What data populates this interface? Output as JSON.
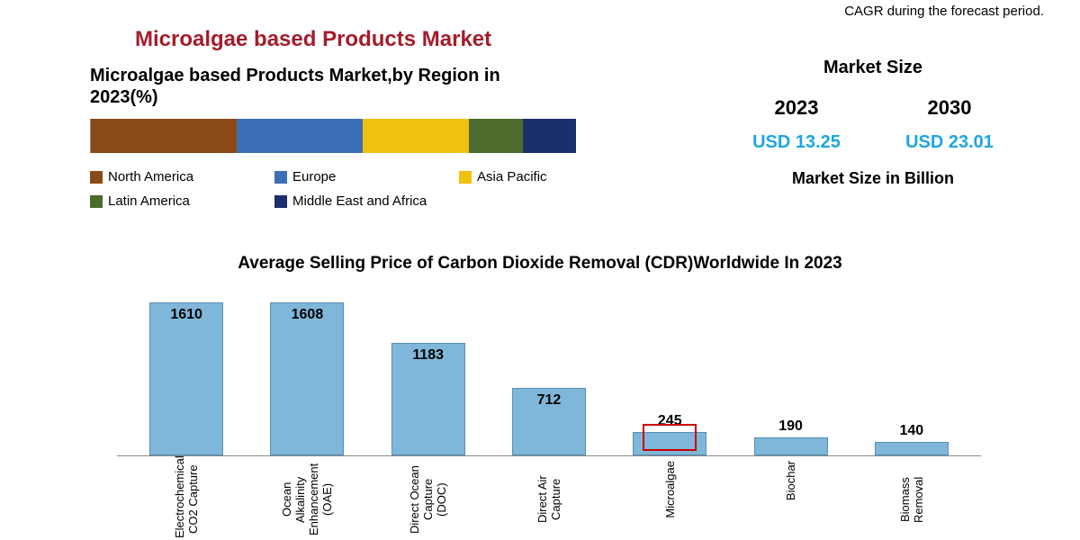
{
  "top_note": "CAGR during the forecast period.",
  "main_title": "Microalgae based Products Market",
  "main_title_color": "#a31d2c",
  "region_chart": {
    "title": "Microalgae based Products Market,by Region in 2023(%)",
    "type": "stacked-bar-horizontal",
    "segments": [
      {
        "label": "North America",
        "pct": 30,
        "color": "#8a4a15"
      },
      {
        "label": "Europe",
        "pct": 26,
        "color": "#3b6fb5"
      },
      {
        "label": "Asia Pacific",
        "pct": 22,
        "color": "#f2c10f"
      },
      {
        "label": "Latin America",
        "pct": 11,
        "color": "#4d6b2d"
      },
      {
        "label": "Middle East and Africa",
        "pct": 11,
        "color": "#1b2f6a"
      }
    ]
  },
  "market_size": {
    "title": "Market Size",
    "years": [
      "2023",
      "2030"
    ],
    "values": [
      "USD 13.25",
      "USD 23.01"
    ],
    "value_color": "#1ea6e0",
    "unit": "Market Size in Billion"
  },
  "cdr_chart": {
    "title": "Average Selling Price of Carbon Dioxide Removal (CDR)Worldwide In 2023",
    "type": "bar",
    "bar_color": "#7fb7da",
    "bar_border": "#5a8fb0",
    "max_value": 1700,
    "highlight_color": "#cc0000",
    "bars": [
      {
        "label": "Electrochemical CO2 Capture",
        "value": 1610,
        "highlight": false
      },
      {
        "label": "Ocean Alkalinity Enhancement (OAE)",
        "value": 1608,
        "highlight": false
      },
      {
        "label": "Direct Ocean Capture (DOC)",
        "value": 1183,
        "highlight": false
      },
      {
        "label": "Direct Air Capture",
        "value": 712,
        "highlight": false
      },
      {
        "label": "Microalgae",
        "value": 245,
        "highlight": true
      },
      {
        "label": "Biochar",
        "value": 190,
        "highlight": false
      },
      {
        "label": "Biomass Removal",
        "value": 140,
        "highlight": false
      }
    ]
  }
}
